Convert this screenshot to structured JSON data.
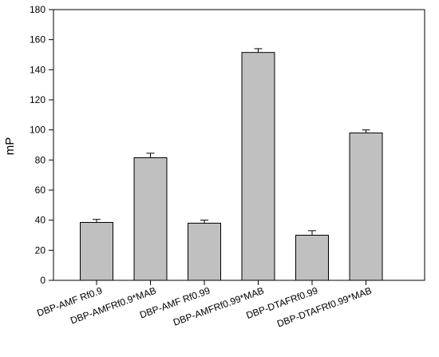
{
  "chart_data": {
    "type": "bar",
    "title": "",
    "xlabel": "",
    "ylabel": "mP",
    "ylim": [
      0,
      180
    ],
    "yticks": [
      0,
      20,
      40,
      60,
      80,
      100,
      120,
      140,
      160,
      180
    ],
    "grid": false,
    "legend": "none",
    "bar_color": "#c0c0c0",
    "categories": [
      "DBP-AMF Rf0.9",
      "DBP-AMFRf0.9*MAB",
      "DBP-AMF Rf0.99",
      "DBP-AMFRf0.99*MAB",
      "DBP-DTAFRf0.99",
      "DBP-DTAFRf0.99*MAB"
    ],
    "values": [
      38.5,
      81.5,
      38,
      151.5,
      30,
      98
    ],
    "errors": [
      2,
      3,
      2,
      2.5,
      3,
      2
    ]
  }
}
